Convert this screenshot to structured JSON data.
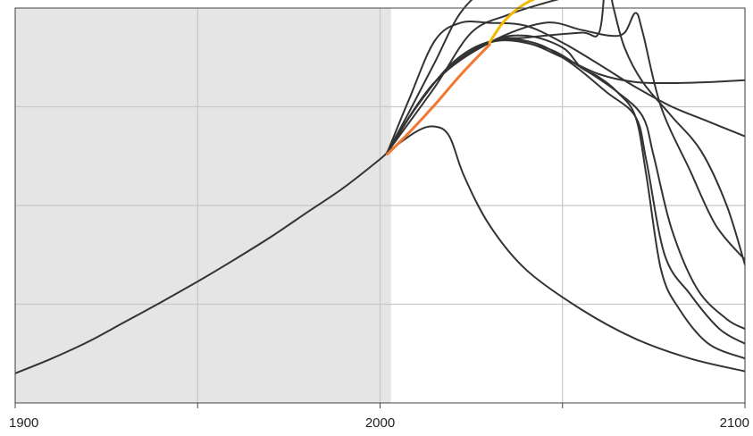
{
  "chart_data": {
    "type": "line",
    "title": "",
    "xlabel": "",
    "ylabel": "",
    "xlim": [
      1900,
      2100
    ],
    "ylim": [
      0,
      4
    ],
    "x_ticks": [
      1900,
      1950,
      2000,
      2050,
      2100
    ],
    "x_tick_labels": [
      "1900",
      "",
      "2000",
      "",
      "2100"
    ],
    "y_ticks": [
      1,
      2,
      3
    ],
    "grid": true,
    "shaded_region": {
      "x_start": 1900,
      "x_end": 2003,
      "color": "#e5e5e5"
    },
    "colors": {
      "scenario": "#333333",
      "highlight": "#f5b800",
      "historical": "#f07830",
      "grid": "#c8c8c8",
      "axes": "#444444"
    },
    "history": {
      "name": "",
      "color": "#333333",
      "points": [
        [
          1900,
          0.3
        ],
        [
          1910,
          0.45
        ],
        [
          1920,
          0.62
        ],
        [
          1930,
          0.82
        ],
        [
          1940,
          1.02
        ],
        [
          1950,
          1.23
        ],
        [
          1960,
          1.45
        ],
        [
          1970,
          1.68
        ],
        [
          1980,
          1.93
        ],
        [
          1990,
          2.18
        ],
        [
          2000,
          2.47
        ],
        [
          2002,
          2.54
        ]
      ]
    },
    "series": [
      {
        "name": "",
        "color": "#333333",
        "points": [
          [
            2002,
            2.54
          ],
          [
            2008,
            2.95
          ],
          [
            2015,
            3.45
          ],
          [
            2022,
            3.95
          ],
          [
            2030,
            4.22
          ],
          [
            2040,
            4.33
          ],
          [
            2048,
            4.23
          ],
          [
            2058,
            4.25
          ],
          [
            2070,
            4.35
          ],
          [
            2080,
            4.5
          ]
        ]
      },
      {
        "name": "",
        "color": "#333333",
        "points": [
          [
            2002,
            2.54
          ],
          [
            2008,
            3.08
          ],
          [
            2015,
            3.67
          ],
          [
            2022,
            3.85
          ],
          [
            2030,
            3.85
          ],
          [
            2040,
            3.82
          ],
          [
            2050,
            3.65
          ],
          [
            2060,
            3.43
          ],
          [
            2070,
            3.2
          ],
          [
            2080,
            3.0
          ],
          [
            2090,
            2.85
          ],
          [
            2100,
            2.7
          ]
        ]
      },
      {
        "name": "",
        "color": "#333333",
        "points": [
          [
            2002,
            2.54
          ],
          [
            2010,
            3.0
          ],
          [
            2020,
            3.45
          ],
          [
            2030,
            3.66
          ],
          [
            2040,
            3.65
          ],
          [
            2050,
            3.5
          ],
          [
            2060,
            3.33
          ],
          [
            2070,
            3.25
          ],
          [
            2080,
            3.24
          ],
          [
            2090,
            3.25
          ],
          [
            2100,
            3.27
          ]
        ]
      },
      {
        "name": "",
        "color": "#333333",
        "points": [
          [
            2002,
            2.54
          ],
          [
            2015,
            3.2
          ],
          [
            2025,
            3.75
          ],
          [
            2035,
            3.93
          ],
          [
            2045,
            4.05
          ],
          [
            2055,
            4.15
          ],
          [
            2062,
            4.25
          ],
          [
            2068,
            4.35
          ],
          [
            2073,
            4.45
          ]
        ]
      },
      {
        "name": "",
        "color": "#333333",
        "points": [
          [
            2002,
            2.54
          ],
          [
            2015,
            3.25
          ],
          [
            2030,
            3.65
          ],
          [
            2040,
            3.72
          ],
          [
            2050,
            3.6
          ],
          [
            2055,
            3.4
          ],
          [
            2060,
            3.3
          ],
          [
            2065,
            3.15
          ],
          [
            2070,
            2.9
          ],
          [
            2073,
            2.3
          ],
          [
            2077,
            1.35
          ],
          [
            2082,
            0.95
          ],
          [
            2090,
            0.6
          ],
          [
            2100,
            0.45
          ]
        ]
      },
      {
        "name": "",
        "color": "#333333",
        "points": [
          [
            2002,
            2.54
          ],
          [
            2015,
            3.25
          ],
          [
            2030,
            3.65
          ],
          [
            2042,
            3.65
          ],
          [
            2052,
            3.45
          ],
          [
            2062,
            3.15
          ],
          [
            2070,
            2.9
          ],
          [
            2073,
            2.45
          ],
          [
            2078,
            1.5
          ],
          [
            2085,
            1.1
          ],
          [
            2093,
            0.75
          ],
          [
            2100,
            0.6
          ]
        ]
      },
      {
        "name": "",
        "color": "#333333",
        "points": [
          [
            2002,
            2.54
          ],
          [
            2015,
            3.25
          ],
          [
            2030,
            3.65
          ],
          [
            2045,
            3.6
          ],
          [
            2055,
            3.4
          ],
          [
            2065,
            3.15
          ],
          [
            2072,
            2.9
          ],
          [
            2075,
            2.5
          ],
          [
            2080,
            1.75
          ],
          [
            2087,
            1.15
          ],
          [
            2095,
            0.85
          ],
          [
            2100,
            0.75
          ]
        ]
      },
      {
        "name": "",
        "color": "#333333",
        "points": [
          [
            2002,
            2.54
          ],
          [
            2015,
            3.25
          ],
          [
            2030,
            3.65
          ],
          [
            2045,
            3.85
          ],
          [
            2055,
            3.78
          ],
          [
            2063,
            3.72
          ],
          [
            2067,
            3.75
          ],
          [
            2070,
            3.95
          ],
          [
            2072,
            3.75
          ],
          [
            2077,
            3.0
          ],
          [
            2085,
            2.35
          ],
          [
            2092,
            1.8
          ],
          [
            2100,
            1.45
          ]
        ]
      },
      {
        "name": "",
        "color": "#333333",
        "points": [
          [
            2002,
            2.54
          ],
          [
            2015,
            3.25
          ],
          [
            2030,
            3.65
          ],
          [
            2040,
            3.7
          ],
          [
            2055,
            3.75
          ],
          [
            2060,
            3.75
          ],
          [
            2062,
            4.3
          ],
          [
            2064,
            4.0
          ],
          [
            2067,
            3.6
          ],
          [
            2072,
            3.25
          ],
          [
            2080,
            2.9
          ],
          [
            2088,
            2.55
          ],
          [
            2095,
            2.0
          ],
          [
            2100,
            1.4
          ]
        ]
      },
      {
        "name": "",
        "color": "#333333",
        "points": [
          [
            2002,
            2.54
          ],
          [
            2010,
            2.75
          ],
          [
            2015,
            2.8
          ],
          [
            2019,
            2.7
          ],
          [
            2023,
            2.3
          ],
          [
            2030,
            1.8
          ],
          [
            2040,
            1.35
          ],
          [
            2055,
            0.95
          ],
          [
            2070,
            0.65
          ],
          [
            2085,
            0.45
          ],
          [
            2100,
            0.32
          ]
        ]
      }
    ],
    "highlight": {
      "name": "",
      "color": "#f5b800",
      "points": [
        [
          2030,
          3.65
        ],
        [
          2033,
          3.82
        ],
        [
          2036,
          3.94
        ],
        [
          2040,
          4.05
        ],
        [
          2045,
          4.13
        ],
        [
          2050,
          4.18
        ],
        [
          2060,
          4.26
        ],
        [
          2070,
          4.32
        ],
        [
          2080,
          4.36
        ],
        [
          2090,
          4.39
        ],
        [
          2100,
          4.42
        ]
      ]
    },
    "recent": {
      "name": "",
      "color": "#f07830",
      "points": [
        [
          2002,
          2.52
        ],
        [
          2008,
          2.74
        ],
        [
          2015,
          3.02
        ],
        [
          2022,
          3.32
        ],
        [
          2030,
          3.63
        ]
      ]
    }
  }
}
